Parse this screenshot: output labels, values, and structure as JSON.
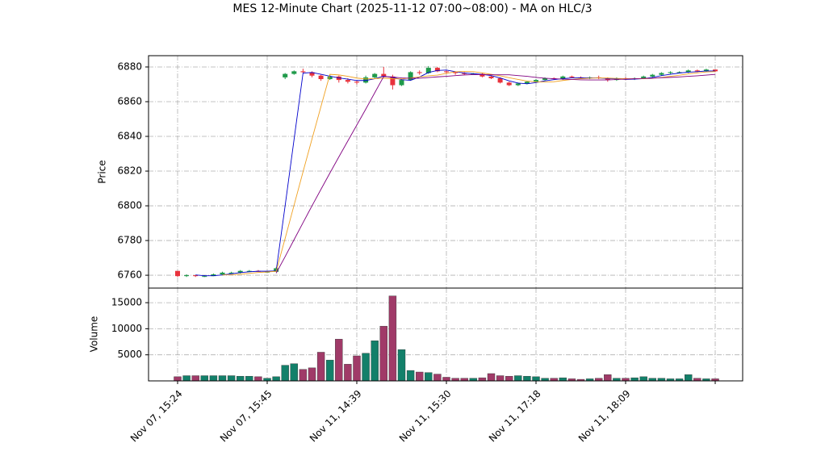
{
  "chart_data": {
    "type": "candlestick",
    "title": "MES 12-Minute Chart (2025-11-12 07:00~08:00) - MA on HLC/3",
    "ylabel": "Price",
    "volume_label": "Volume",
    "categories": [
      "Nov 07, 15:24",
      null,
      null,
      null,
      null,
      null,
      null,
      null,
      null,
      null,
      "Nov 07, 15:45",
      null,
      null,
      null,
      null,
      null,
      null,
      null,
      null,
      null,
      "Nov 11, 14:39",
      null,
      null,
      null,
      null,
      null,
      null,
      null,
      null,
      null,
      "Nov 11, 15:30",
      null,
      null,
      null,
      null,
      null,
      null,
      null,
      null,
      null,
      "Nov 11, 17:18",
      null,
      null,
      null,
      null,
      null,
      null,
      null,
      null,
      null,
      "Nov 11, 18:09",
      null,
      null,
      null,
      null,
      null,
      null,
      null,
      null,
      null,
      null
    ],
    "open": [
      6762.5,
      6759.5,
      6760,
      6759.5,
      6759.5,
      6760.5,
      6761.5,
      6761.5,
      6762.5,
      6762.5,
      6762,
      6762,
      6874,
      6876,
      6877.5,
      6877,
      6875,
      6873,
      6874.5,
      6872.5,
      6871.5,
      6871,
      6874,
      6876,
      6874.5,
      6869.5,
      6872.5,
      6877,
      6876.5,
      6879.5,
      6877.5,
      6877,
      6876.5,
      6876,
      6876,
      6874.5,
      6873.5,
      6871,
      6869.5,
      6870.5,
      6871.5,
      6872.5,
      6873.5,
      6873,
      6874.5,
      6874,
      6873.5,
      6874,
      6873.5,
      6872.5,
      6873.5,
      6873,
      6873.5,
      6874.5,
      6875.5,
      6876.5,
      6877,
      6877,
      6878,
      6877.5,
      6878.5
    ],
    "high": [
      6762.5,
      6760.5,
      6760,
      6760,
      6761,
      6762,
      6762,
      6763,
      6763,
      6763,
      6762.5,
      6764.5,
      6876.5,
      6878,
      6879,
      6877.5,
      6875.5,
      6875.5,
      6875,
      6873.5,
      6872.5,
      6875,
      6876.5,
      6880,
      6875.5,
      6873,
      6877.5,
      6878,
      6880.5,
      6880,
      6878,
      6877.5,
      6877,
      6876.5,
      6876.5,
      6875,
      6874,
      6871.5,
      6871,
      6872,
      6873,
      6874,
      6874,
      6875,
      6875,
      6874.5,
      6874.5,
      6875,
      6874,
      6874,
      6874,
      6874,
      6875,
      6876,
      6877,
      6877.5,
      6877.5,
      6878.5,
      6878.5,
      6879,
      6878.5
    ],
    "low": [
      6759,
      6759,
      6759,
      6759,
      6759.5,
      6760,
      6761,
      6761,
      6762,
      6762,
      6761.5,
      6762,
      6873,
      6875.5,
      6876.5,
      6874,
      6872,
      6872.5,
      6871,
      6870.5,
      6870,
      6870.5,
      6873.5,
      6874,
      6867,
      6869,
      6872,
      6875.5,
      6876,
      6877,
      6876,
      6875.5,
      6875.5,
      6875.5,
      6874,
      6873,
      6870.5,
      6869,
      6869,
      6870,
      6871,
      6872,
      6872.5,
      6872.5,
      6873.5,
      6873,
      6873,
      6873,
      6871.5,
      6872,
      6872.5,
      6872.5,
      6873,
      6874,
      6875,
      6876,
      6876.5,
      6876.5,
      6877,
      6877,
      6877
    ],
    "close": [
      6759.5,
      6760,
      6759.5,
      6759.5,
      6760.5,
      6761.5,
      6761.5,
      6762.5,
      6762.5,
      6762,
      6762,
      6764,
      6876,
      6877.5,
      6877,
      6875,
      6873,
      6874.5,
      6872.5,
      6871.5,
      6871,
      6874,
      6876,
      6874.5,
      6869.5,
      6872.5,
      6877,
      6876.5,
      6879.5,
      6877.5,
      6877,
      6876.5,
      6876,
      6876,
      6874.5,
      6873.5,
      6871,
      6869.5,
      6870.5,
      6871.5,
      6872.5,
      6873.5,
      6873,
      6874.5,
      6874,
      6873.5,
      6874,
      6873.5,
      6872.5,
      6873.5,
      6873,
      6873.5,
      6874.5,
      6875.5,
      6876.5,
      6877,
      6877,
      6878,
      6877.5,
      6878.5,
      6877.5
    ],
    "volume": [
      800,
      1000,
      1000,
      1000,
      1000,
      1000,
      1000,
      900,
      900,
      800,
      500,
      800,
      3000,
      3300,
      2200,
      2500,
      5500,
      4000,
      8000,
      3200,
      4800,
      5300,
      7700,
      10500,
      16300,
      6000,
      2000,
      1700,
      1600,
      1300,
      700,
      500,
      500,
      500,
      600,
      1400,
      1000,
      900,
      1000,
      900,
      800,
      500,
      500,
      600,
      400,
      300,
      400,
      500,
      1200,
      500,
      500,
      600,
      800,
      500,
      500,
      400,
      400,
      1200,
      500,
      400,
      400
    ],
    "up_color": "#1f9a4a",
    "down_color": "#e8323c",
    "volume_up_color": "#13806a",
    "volume_down_color": "#a03a68",
    "series": [
      {
        "color": "#0000cc",
        "values": [
          null,
          null,
          6760.2,
          6759.7,
          6759.7,
          6760.2,
          6760.8,
          6761.5,
          6762,
          6762.3,
          6762.3,
          6762.5,
          6800,
          6838.3,
          6876.5,
          6876.8,
          6875.8,
          6874.7,
          6873.7,
          6873,
          6872.2,
          6872.2,
          6873.2,
          6874.7,
          6874,
          6872.7,
          6872.3,
          6874.2,
          6876.8,
          6878,
          6878.2,
          6877.3,
          6876.5,
          6876.2,
          6875.7,
          6875,
          6873.7,
          6872,
          6870.7,
          6870.3,
          6871,
          6872,
          6872.7,
          6873.3,
          6873.7,
          6873.8,
          6873.7,
          6873.7,
          6873.3,
          6873.2,
          6872.8,
          6873,
          6873.3,
          6874,
          6875,
          6875.8,
          6876.5,
          6877,
          6877.3,
          6877.7,
          6877.7
        ]
      },
      {
        "color": "#f0a020",
        "values": [
          null,
          null,
          null,
          null,
          null,
          6760.2,
          6760.25,
          6760.6,
          6761.1,
          6761.6,
          6761.9,
          6762.25,
          6781.2,
          6800.4,
          6819.6,
          6838.5,
          6857.2,
          6875.75,
          6875.4,
          6874.6,
          6873.6,
          6873.1,
          6873.25,
          6873.6,
          6873.25,
          6873.1,
          6873.7,
          6874.25,
          6874.9,
          6875.3,
          6876.3,
          6877.25,
          6877.4,
          6877.3,
          6876.6,
          6875.75,
          6874.9,
          6873.8,
          6872.8,
          6871.9,
          6871.4,
          6871.3,
          6871.5,
          6872.2,
          6872.8,
          6873.25,
          6873.5,
          6873.7,
          6873.6,
          6873.4,
          6873.25,
          6873.2,
          6873.25,
          6873.4,
          6874,
          6874.6,
          6875.25,
          6876,
          6876.6,
          6877.1,
          6877.35
        ]
      },
      {
        "color": "#800080",
        "values": [
          null,
          null,
          null,
          null,
          null,
          null,
          null,
          null,
          null,
          null,
          null,
          6761.2,
          6770.7,
          6780.5,
          6790.3,
          6800,
          6809.5,
          6818.9,
          6828.2,
          6837.4,
          6846.5,
          6855.7,
          6865.1,
          6874.5,
          6874.2,
          6873.7,
          6873.5,
          6873.5,
          6873.9,
          6874.3,
          6874.6,
          6875,
          6875.4,
          6875.6,
          6875.6,
          6875.5,
          6875.5,
          6875.5,
          6875,
          6874.6,
          6874,
          6873.5,
          6873.2,
          6873,
          6872.8,
          6872.6,
          6872.5,
          6872.5,
          6872.5,
          6872.8,
          6873,
          6873.2,
          6873.4,
          6873.5,
          6873.8,
          6874,
          6874.25,
          6874.6,
          6874.9,
          6875.3,
          6875.7
        ]
      }
    ],
    "ylim": [
      6752.6,
      6886.5
    ],
    "yticks": [
      6760,
      6780,
      6800,
      6820,
      6840,
      6860,
      6880
    ],
    "volume_ylim": [
      0,
      17800
    ],
    "volume_yticks": [
      5000,
      10000,
      15000
    ],
    "grid": true
  }
}
